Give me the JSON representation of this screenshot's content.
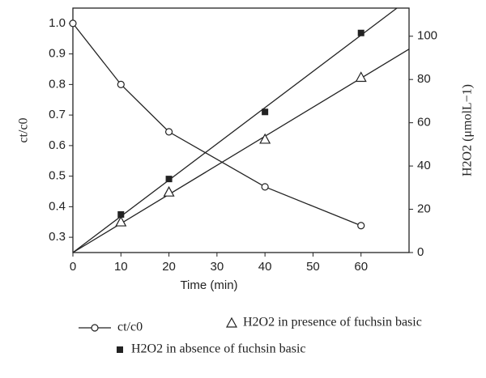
{
  "chart_data": {
    "type": "line",
    "x_label": "Time (min)",
    "y_label": "ct/c0",
    "y2_label": "H2O2 (μmolL−1)",
    "xlim": [
      0,
      70
    ],
    "xticks": [
      0,
      10,
      20,
      30,
      40,
      50,
      60
    ],
    "ylim": [
      0.25,
      1.05
    ],
    "yticks": [
      {
        "value": 0.3,
        "label": "0.3"
      },
      {
        "value": 0.4,
        "label": "0.4"
      },
      {
        "value": 0.5,
        "label": "0.5"
      },
      {
        "value": 0.6,
        "label": "0.6"
      },
      {
        "value": 0.7,
        "label": "0.7"
      },
      {
        "value": 0.8,
        "label": "0.8"
      },
      {
        "value": 0.9,
        "label": "0.9"
      },
      {
        "value": 1.0,
        "label": "1.0"
      }
    ],
    "y2lim": [
      0,
      113
    ],
    "y2ticks": [
      0,
      20,
      40,
      60,
      80,
      100
    ],
    "series": [
      {
        "name": "ct/c0",
        "color": "#222222",
        "marker": "circle",
        "line": "connect",
        "x": [
          0,
          10,
          20,
          40,
          60
        ],
        "values": [
          1.0,
          0.8,
          0.645,
          0.465,
          0.338
        ]
      },
      {
        "name": "H2O2 in presence of fuchsin basic",
        "color": "#222222",
        "marker": "triangle",
        "line": "fit",
        "axis": "y2",
        "x": [
          10,
          20,
          40,
          60
        ],
        "values": [
          14.2,
          28,
          52.4,
          81
        ]
      },
      {
        "name": "H2O2 in absence of fuchsin basic",
        "color": "#222222",
        "marker": "square",
        "line": "fit",
        "axis": "y2",
        "x": [
          10,
          20,
          40,
          60
        ],
        "values": [
          17.6,
          34,
          65,
          101.5
        ]
      }
    ]
  }
}
